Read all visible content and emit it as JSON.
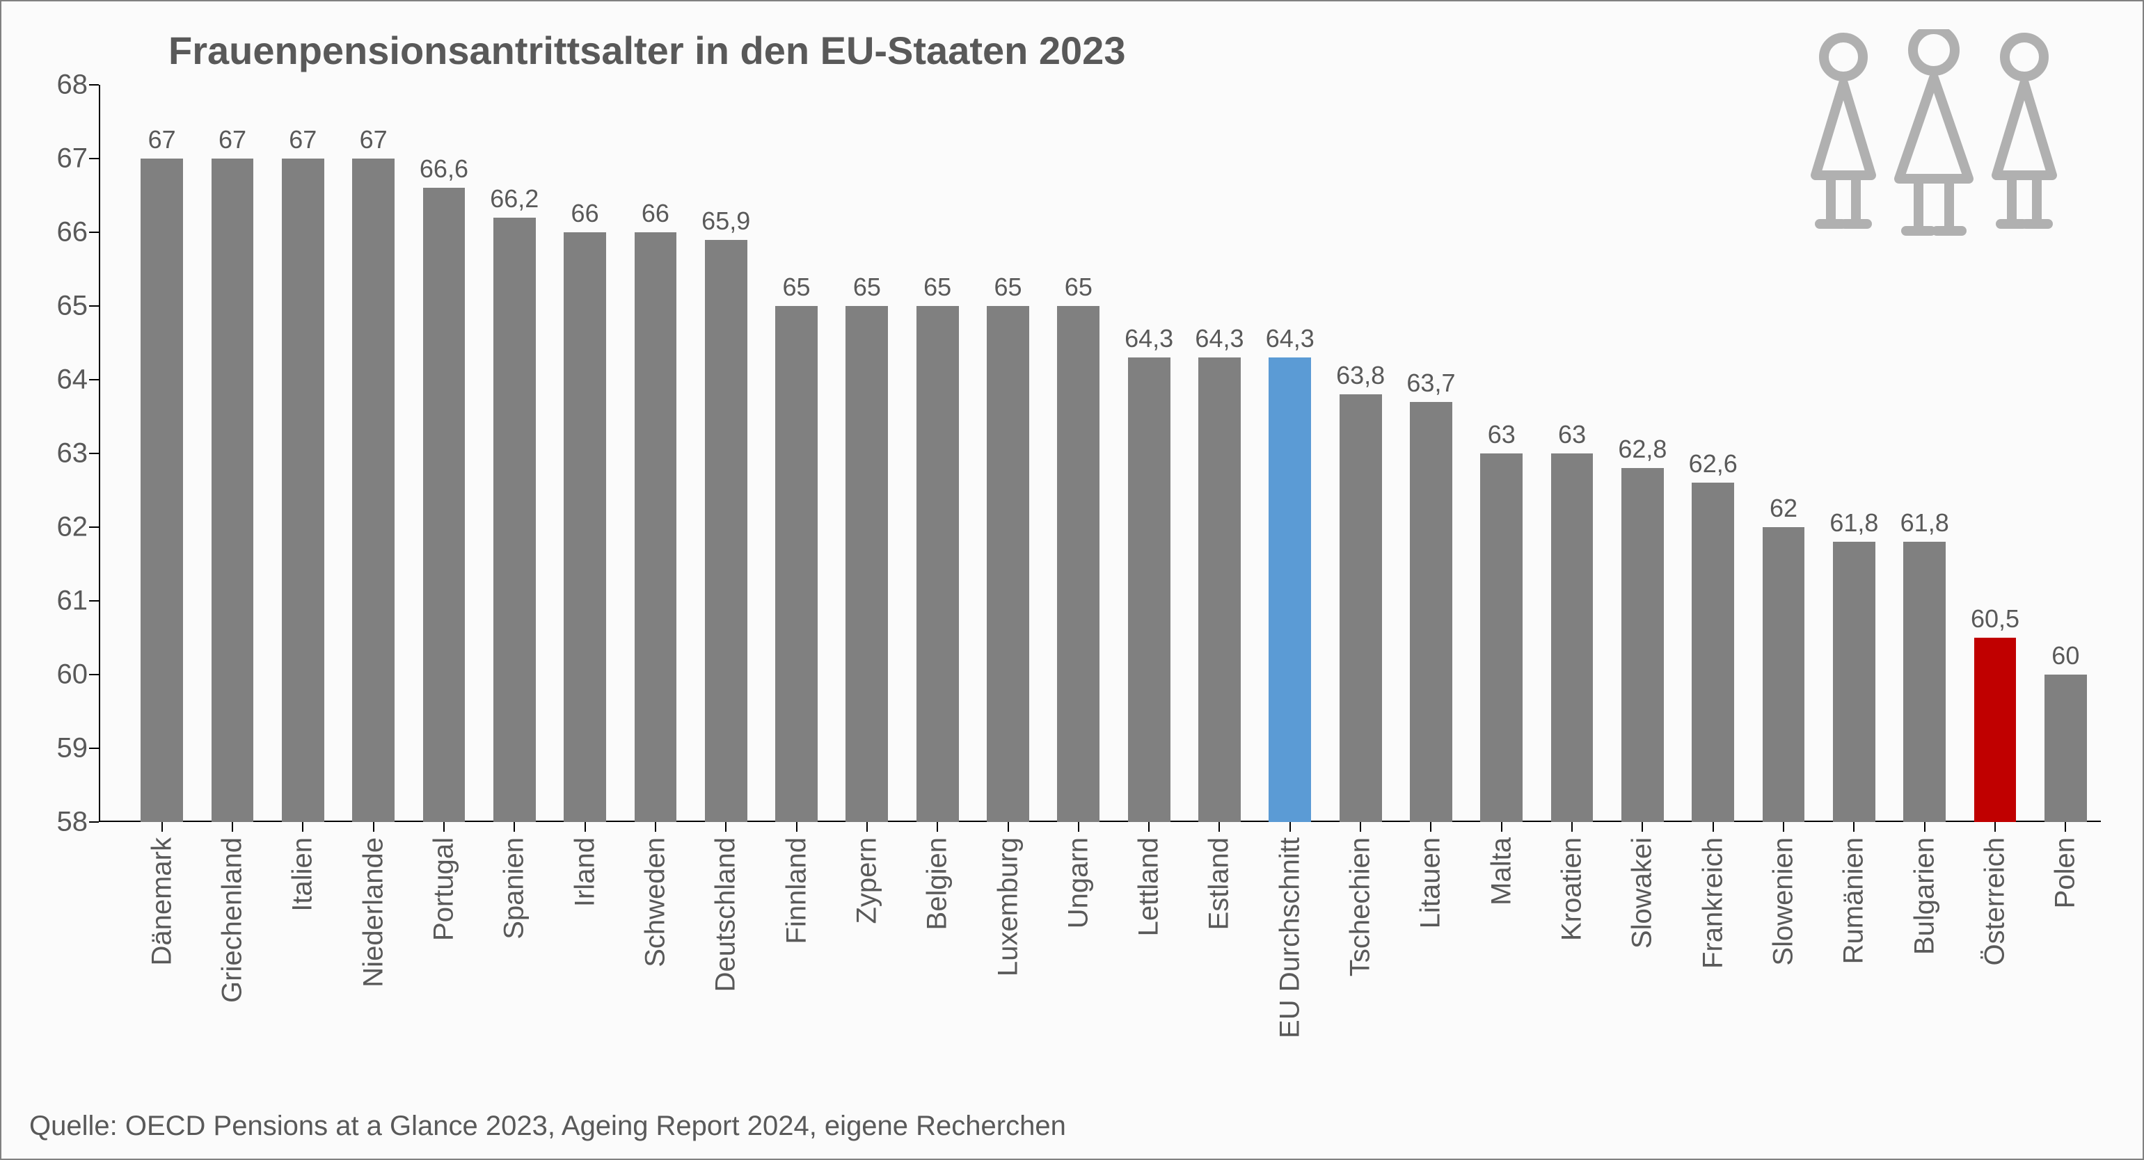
{
  "chart": {
    "type": "bar",
    "title": "Frauenpensionsantrittsalter in den EU-Staaten 2023",
    "title_fontsize": 56,
    "title_color": "#595959",
    "background_color": "#fbfbfb",
    "border_color": "#808080",
    "axis_color": "#000000",
    "ylim": [
      58,
      68
    ],
    "ytick_step": 1,
    "yticks": [
      58,
      59,
      60,
      61,
      62,
      63,
      64,
      65,
      66,
      67,
      68
    ],
    "label_fontsize": 40,
    "value_label_fontsize": 36,
    "text_color": "#595959",
    "bar_gap_ratio": 0.4,
    "default_bar_color": "#808080",
    "categories": [
      {
        "label": "Dänemark",
        "value": 67,
        "value_label": "67",
        "color": "#808080"
      },
      {
        "label": "Griechenland",
        "value": 67,
        "value_label": "67",
        "color": "#808080"
      },
      {
        "label": "Italien",
        "value": 67,
        "value_label": "67",
        "color": "#808080"
      },
      {
        "label": "Niederlande",
        "value": 67,
        "value_label": "67",
        "color": "#808080"
      },
      {
        "label": "Portugal",
        "value": 66.6,
        "value_label": "66,6",
        "color": "#808080"
      },
      {
        "label": "Spanien",
        "value": 66.2,
        "value_label": "66,2",
        "color": "#808080"
      },
      {
        "label": "Irland",
        "value": 66,
        "value_label": "66",
        "color": "#808080"
      },
      {
        "label": "Schweden",
        "value": 66,
        "value_label": "66",
        "color": "#808080"
      },
      {
        "label": "Deutschland",
        "value": 65.9,
        "value_label": "65,9",
        "color": "#808080"
      },
      {
        "label": "Finnland",
        "value": 65,
        "value_label": "65",
        "color": "#808080"
      },
      {
        "label": "Zypern",
        "value": 65,
        "value_label": "65",
        "color": "#808080"
      },
      {
        "label": "Belgien",
        "value": 65,
        "value_label": "65",
        "color": "#808080"
      },
      {
        "label": "Luxemburg",
        "value": 65,
        "value_label": "65",
        "color": "#808080"
      },
      {
        "label": "Ungarn",
        "value": 65,
        "value_label": "65",
        "color": "#808080"
      },
      {
        "label": "Lettland",
        "value": 64.3,
        "value_label": "64,3",
        "color": "#808080"
      },
      {
        "label": "Estland",
        "value": 64.3,
        "value_label": "64,3",
        "color": "#808080"
      },
      {
        "label": "EU Durchschnitt",
        "value": 64.3,
        "value_label": "64,3",
        "color": "#5b9bd5"
      },
      {
        "label": "Tschechien",
        "value": 63.8,
        "value_label": "63,8",
        "color": "#808080"
      },
      {
        "label": "Litauen",
        "value": 63.7,
        "value_label": "63,7",
        "color": "#808080"
      },
      {
        "label": "Malta",
        "value": 63,
        "value_label": "63",
        "color": "#808080"
      },
      {
        "label": "Kroatien",
        "value": 63,
        "value_label": "63",
        "color": "#808080"
      },
      {
        "label": "Slowakei",
        "value": 62.8,
        "value_label": "62,8",
        "color": "#808080"
      },
      {
        "label": "Frankreich",
        "value": 62.6,
        "value_label": "62,6",
        "color": "#808080"
      },
      {
        "label": "Slowenien",
        "value": 62,
        "value_label": "62",
        "color": "#808080"
      },
      {
        "label": "Rumänien",
        "value": 61.8,
        "value_label": "61,8",
        "color": "#808080"
      },
      {
        "label": "Bulgarien",
        "value": 61.8,
        "value_label": "61,8",
        "color": "#808080"
      },
      {
        "label": "Österreich",
        "value": 60.5,
        "value_label": "60,5",
        "color": "#c00000"
      },
      {
        "label": "Polen",
        "value": 60,
        "value_label": "60",
        "color": "#808080"
      }
    ],
    "source": "Quelle: OECD Pensions at a Glance 2023, Ageing Report 2024, eigene Recherchen",
    "icon_color": "#b0b0b0"
  }
}
